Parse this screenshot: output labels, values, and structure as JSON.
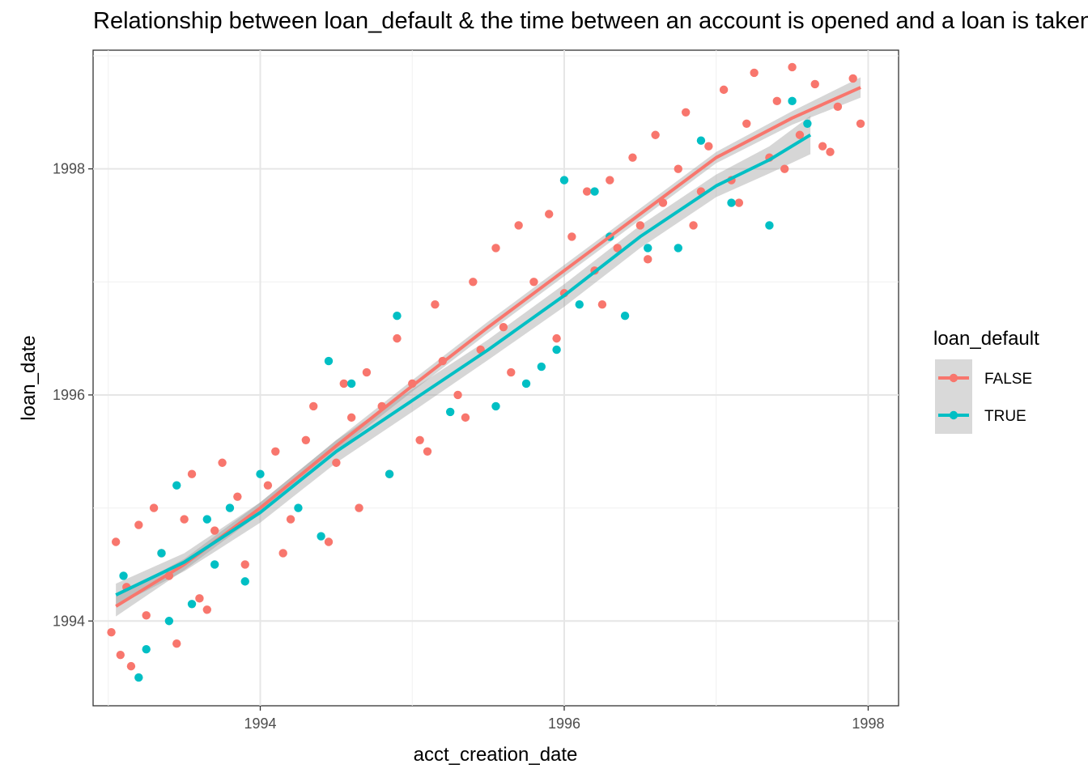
{
  "chart_data": {
    "type": "scatter",
    "title": "Relationship between loan_default & the time between an account is opened and a loan is taken",
    "xlabel": "acct_creation_date",
    "ylabel": "loan_date",
    "xlim": [
      1992.9,
      1998.2
    ],
    "ylim": [
      1993.25,
      1999.05
    ],
    "x_ticks": [
      1994,
      1996,
      1998
    ],
    "y_ticks": [
      1994,
      1996,
      1998
    ],
    "grid": true,
    "legend": {
      "title": "loan_default",
      "placement": "right"
    },
    "series": [
      {
        "name": "FALSE",
        "color": "#F8766D",
        "trend": [
          [
            1993.05,
            1994.13
          ],
          [
            1993.5,
            1994.5
          ],
          [
            1994.0,
            1995.0
          ],
          [
            1994.5,
            1995.55
          ],
          [
            1995.0,
            1996.08
          ],
          [
            1995.5,
            1996.6
          ],
          [
            1996.0,
            1997.1
          ],
          [
            1996.5,
            1997.6
          ],
          [
            1997.0,
            1998.1
          ],
          [
            1997.5,
            1998.45
          ],
          [
            1997.95,
            1998.72
          ]
        ],
        "band": [
          0.09,
          0.05,
          0.05,
          0.05,
          0.05,
          0.05,
          0.05,
          0.05,
          0.05,
          0.06,
          0.09
        ],
        "points": [
          [
            1993.05,
            1994.7
          ],
          [
            1993.12,
            1994.3
          ],
          [
            1993.2,
            1994.85
          ],
          [
            1993.3,
            1995.0
          ],
          [
            1993.35,
            1994.6
          ],
          [
            1993.4,
            1994.4
          ],
          [
            1993.5,
            1994.9
          ],
          [
            1993.55,
            1995.3
          ],
          [
            1993.6,
            1994.2
          ],
          [
            1993.7,
            1994.8
          ],
          [
            1993.75,
            1995.4
          ],
          [
            1993.85,
            1995.1
          ],
          [
            1993.9,
            1994.5
          ],
          [
            1994.05,
            1995.2
          ],
          [
            1994.1,
            1995.5
          ],
          [
            1994.2,
            1994.9
          ],
          [
            1994.3,
            1995.6
          ],
          [
            1994.35,
            1995.9
          ],
          [
            1994.5,
            1995.4
          ],
          [
            1994.55,
            1996.1
          ],
          [
            1994.6,
            1995.8
          ],
          [
            1994.7,
            1996.2
          ],
          [
            1994.8,
            1995.9
          ],
          [
            1994.9,
            1996.5
          ],
          [
            1995.0,
            1996.1
          ],
          [
            1995.05,
            1995.6
          ],
          [
            1995.15,
            1996.8
          ],
          [
            1995.2,
            1996.3
          ],
          [
            1995.3,
            1996.0
          ],
          [
            1995.4,
            1997.0
          ],
          [
            1995.45,
            1996.4
          ],
          [
            1995.55,
            1997.3
          ],
          [
            1995.6,
            1996.6
          ],
          [
            1995.7,
            1997.5
          ],
          [
            1995.8,
            1997.0
          ],
          [
            1995.9,
            1997.6
          ],
          [
            1996.0,
            1996.9
          ],
          [
            1996.05,
            1997.4
          ],
          [
            1996.15,
            1997.8
          ],
          [
            1996.2,
            1997.1
          ],
          [
            1996.3,
            1997.9
          ],
          [
            1996.35,
            1997.3
          ],
          [
            1996.45,
            1998.1
          ],
          [
            1996.5,
            1997.5
          ],
          [
            1996.6,
            1998.3
          ],
          [
            1996.65,
            1997.7
          ],
          [
            1996.75,
            1998.0
          ],
          [
            1996.8,
            1998.5
          ],
          [
            1996.9,
            1997.8
          ],
          [
            1996.95,
            1998.2
          ],
          [
            1997.05,
            1998.7
          ],
          [
            1997.1,
            1997.9
          ],
          [
            1997.2,
            1998.4
          ],
          [
            1997.25,
            1998.85
          ],
          [
            1997.35,
            1998.1
          ],
          [
            1997.4,
            1998.6
          ],
          [
            1997.5,
            1998.9
          ],
          [
            1997.55,
            1998.3
          ],
          [
            1997.65,
            1998.75
          ],
          [
            1997.7,
            1998.2
          ],
          [
            1997.8,
            1998.55
          ],
          [
            1997.9,
            1998.8
          ],
          [
            1997.95,
            1998.4
          ],
          [
            1993.02,
            1993.9
          ],
          [
            1993.08,
            1993.7
          ],
          [
            1993.15,
            1993.6
          ],
          [
            1993.25,
            1994.05
          ],
          [
            1993.45,
            1993.8
          ],
          [
            1993.65,
            1994.1
          ],
          [
            1994.15,
            1994.6
          ],
          [
            1994.45,
            1994.7
          ],
          [
            1994.65,
            1995.0
          ],
          [
            1994.85,
            1995.3
          ],
          [
            1995.1,
            1995.5
          ],
          [
            1995.35,
            1995.8
          ],
          [
            1995.65,
            1996.2
          ],
          [
            1995.95,
            1996.5
          ],
          [
            1996.25,
            1996.8
          ],
          [
            1996.55,
            1997.2
          ],
          [
            1996.85,
            1997.5
          ],
          [
            1997.15,
            1997.7
          ],
          [
            1997.45,
            1998.0
          ],
          [
            1997.75,
            1998.15
          ]
        ]
      },
      {
        "name": "TRUE",
        "color": "#00BFC4",
        "trend": [
          [
            1993.05,
            1994.23
          ],
          [
            1993.5,
            1994.52
          ],
          [
            1994.0,
            1994.96
          ],
          [
            1994.5,
            1995.5
          ],
          [
            1995.0,
            1995.95
          ],
          [
            1995.5,
            1996.4
          ],
          [
            1996.0,
            1996.88
          ],
          [
            1996.5,
            1997.4
          ],
          [
            1997.0,
            1997.85
          ],
          [
            1997.35,
            1998.08
          ],
          [
            1997.62,
            1998.3
          ]
        ],
        "band": [
          0.1,
          0.08,
          0.09,
          0.1,
          0.1,
          0.09,
          0.1,
          0.1,
          0.1,
          0.12,
          0.17
        ],
        "points": [
          [
            1993.1,
            1994.4
          ],
          [
            1993.2,
            1993.5
          ],
          [
            1993.25,
            1993.75
          ],
          [
            1993.35,
            1994.6
          ],
          [
            1993.45,
            1995.2
          ],
          [
            1993.55,
            1994.15
          ],
          [
            1993.65,
            1994.9
          ],
          [
            1993.8,
            1995.0
          ],
          [
            1993.9,
            1994.35
          ],
          [
            1994.0,
            1995.3
          ],
          [
            1994.25,
            1995.0
          ],
          [
            1994.4,
            1994.75
          ],
          [
            1994.45,
            1996.3
          ],
          [
            1994.6,
            1996.1
          ],
          [
            1994.85,
            1995.3
          ],
          [
            1994.9,
            1996.7
          ],
          [
            1995.25,
            1995.85
          ],
          [
            1995.55,
            1995.9
          ],
          [
            1995.75,
            1996.1
          ],
          [
            1995.85,
            1996.25
          ],
          [
            1995.95,
            1996.4
          ],
          [
            1996.0,
            1997.9
          ],
          [
            1996.1,
            1996.8
          ],
          [
            1996.2,
            1997.8
          ],
          [
            1996.4,
            1996.7
          ],
          [
            1996.55,
            1997.3
          ],
          [
            1996.75,
            1997.3
          ],
          [
            1996.9,
            1998.25
          ],
          [
            1997.1,
            1997.7
          ],
          [
            1997.35,
            1997.5
          ],
          [
            1997.5,
            1998.6
          ],
          [
            1997.6,
            1998.4
          ],
          [
            1993.4,
            1994.0
          ],
          [
            1993.7,
            1994.5
          ],
          [
            1996.3,
            1997.4
          ]
        ]
      }
    ]
  }
}
